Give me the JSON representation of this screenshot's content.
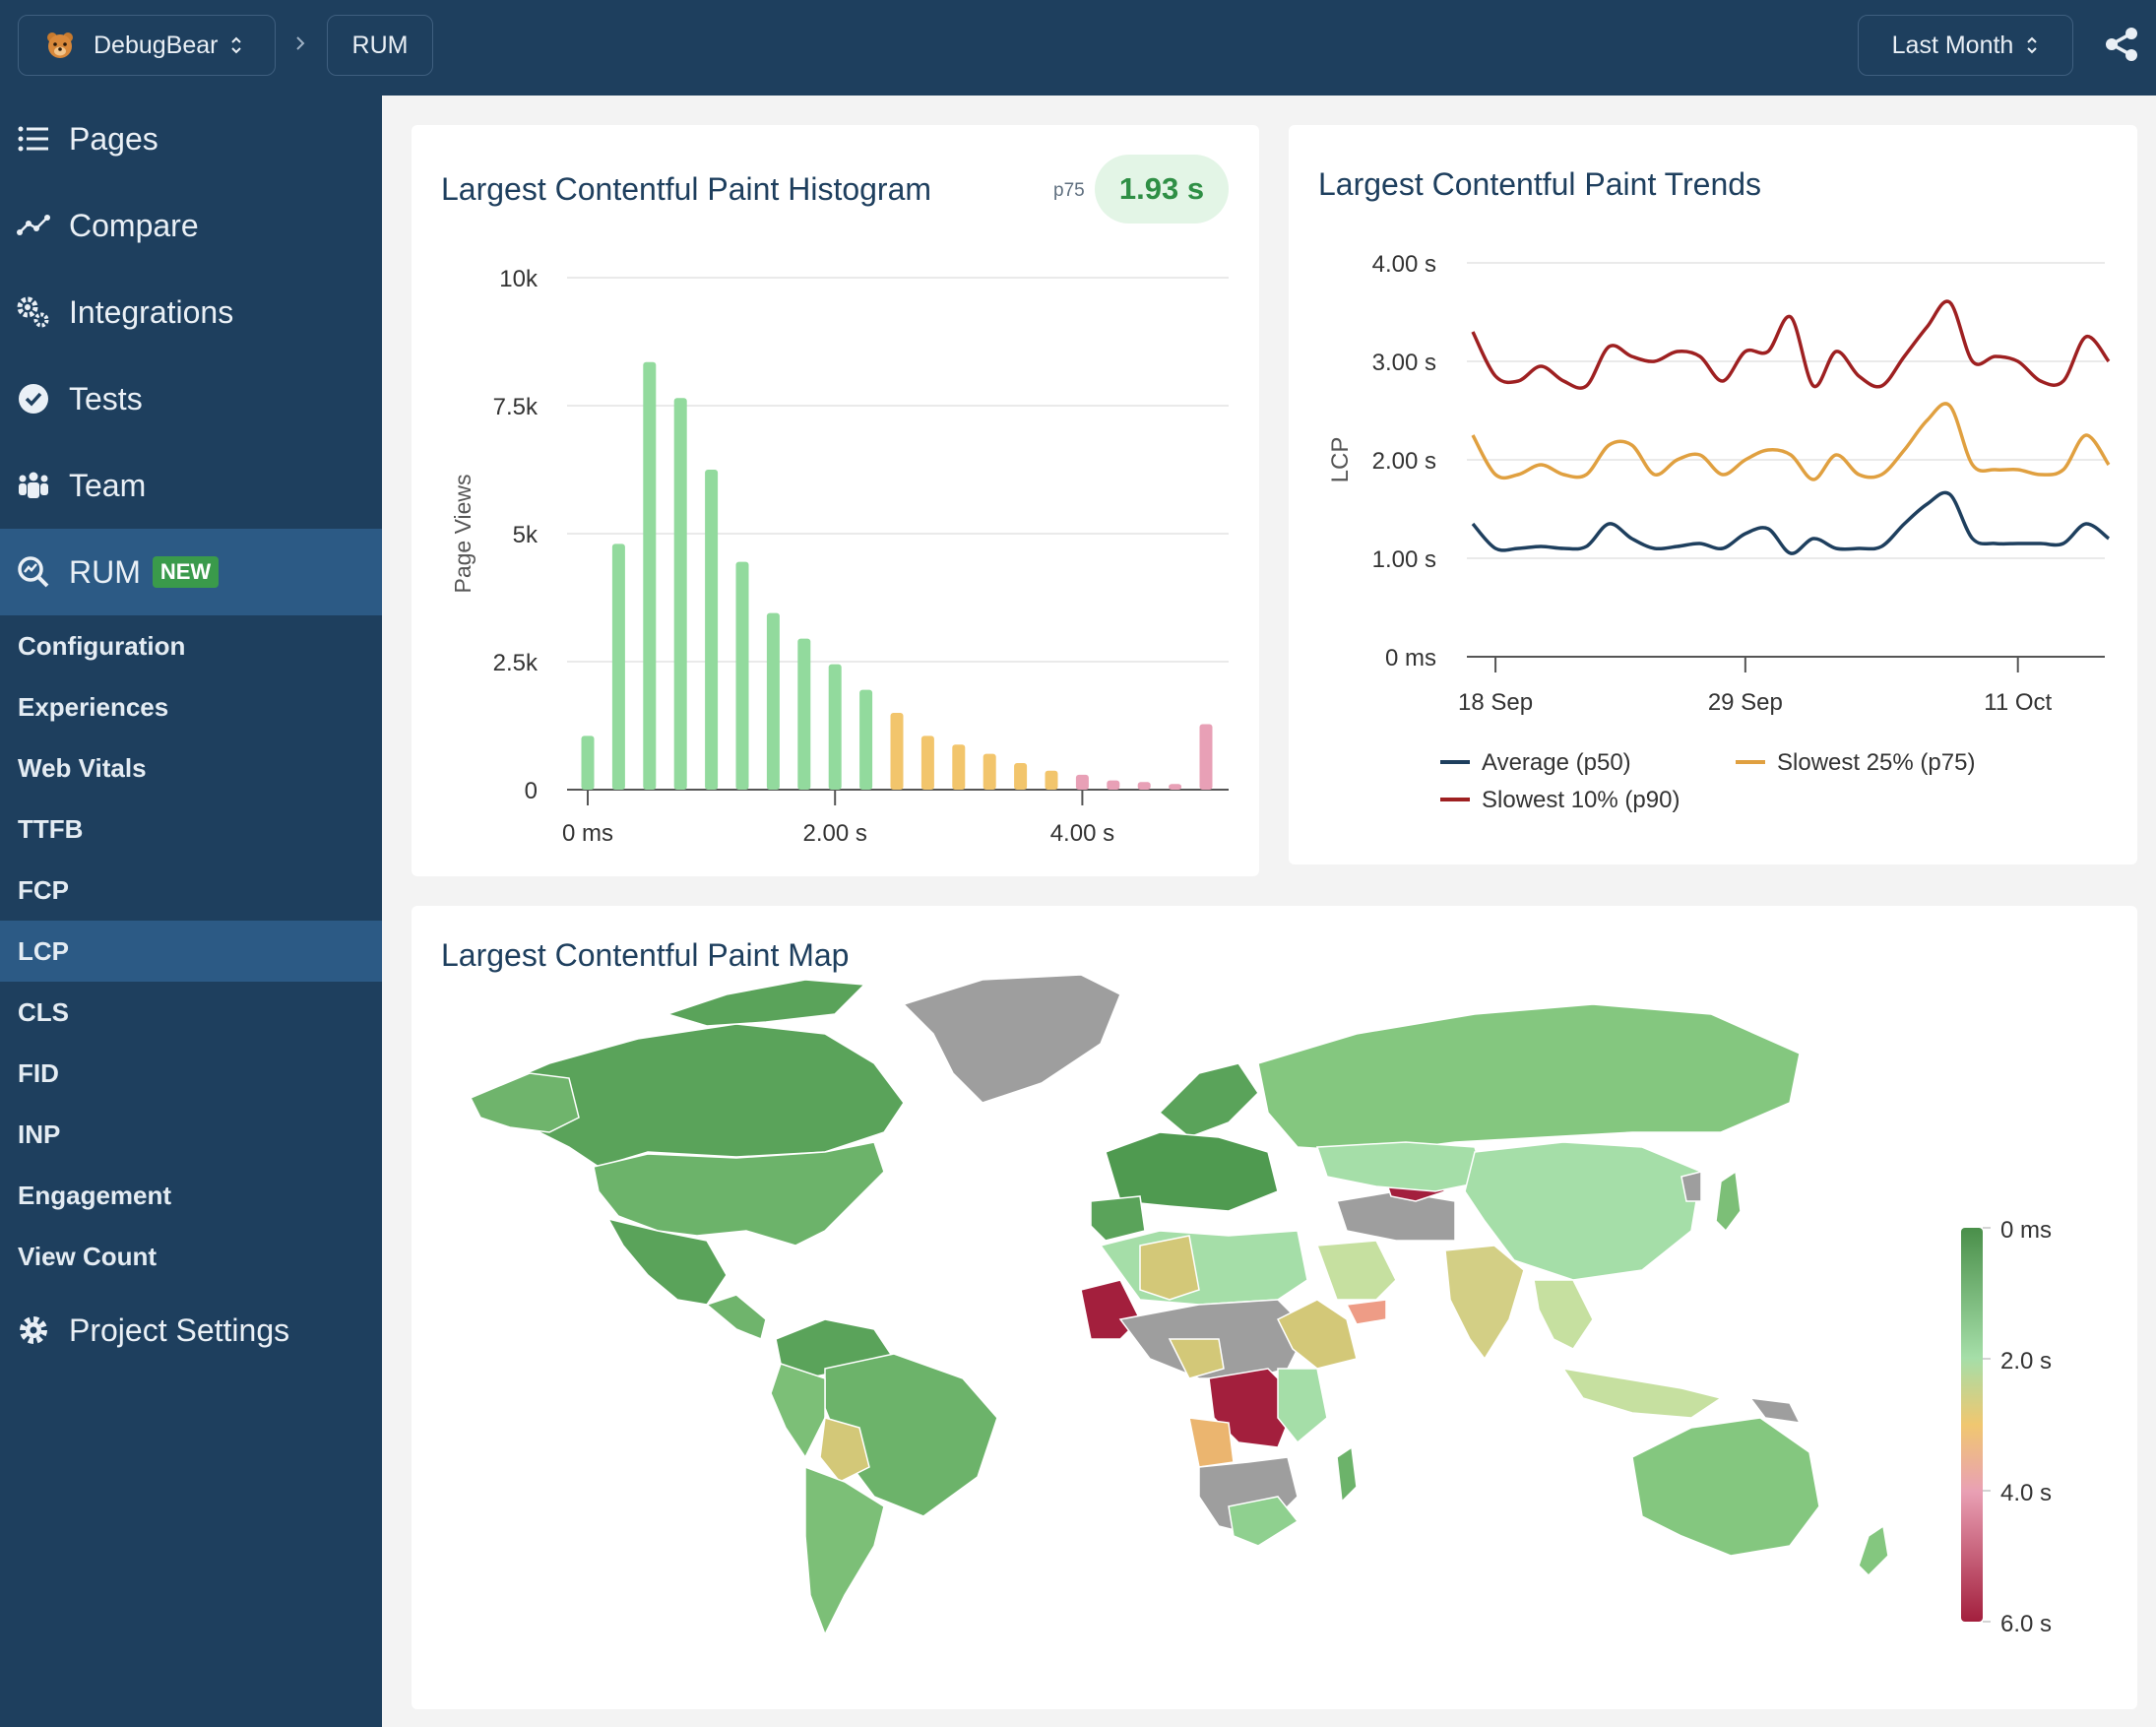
{
  "topbar": {
    "project": "DebugBear",
    "crumb": "RUM",
    "period": "Last Month"
  },
  "sidebar": {
    "items": [
      {
        "label": "Pages"
      },
      {
        "label": "Compare"
      },
      {
        "label": "Integrations"
      },
      {
        "label": "Tests"
      },
      {
        "label": "Team"
      },
      {
        "label": "RUM",
        "badge": "NEW"
      }
    ],
    "sub_items": [
      "Configuration",
      "Experiences",
      "Web Vitals",
      "TTFB",
      "FCP",
      "LCP",
      "CLS",
      "FID",
      "INP",
      "Engagement",
      "View Count"
    ],
    "active_sub": "LCP",
    "settings": "Project Settings"
  },
  "histogram": {
    "title": "Largest Contentful Paint Histogram",
    "p75_label": "p75",
    "p75_value": "1.93 s",
    "chart_data": {
      "type": "bar",
      "ylabel": "Page Views",
      "ylim": [
        0,
        10000
      ],
      "y_ticks": [
        "0",
        "2.5k",
        "5k",
        "7.5k",
        "10k"
      ],
      "x_ticks": [
        "0 ms",
        "2.00 s",
        "4.00 s"
      ],
      "bin_width_s": 0.25,
      "x": [
        0,
        0.25,
        0.5,
        0.75,
        1.0,
        1.25,
        1.5,
        1.75,
        2.0,
        2.25,
        2.5,
        2.75,
        3.0,
        3.25,
        3.5,
        3.75,
        4.0,
        4.25,
        4.5,
        4.75,
        5.0
      ],
      "values": [
        1050,
        4800,
        8350,
        7650,
        6250,
        4450,
        3450,
        2950,
        2450,
        1950,
        1500,
        1050,
        880,
        700,
        520,
        370,
        290,
        180,
        150,
        110,
        1280
      ],
      "colors": [
        "#92da9d",
        "#92da9d",
        "#92da9d",
        "#92da9d",
        "#92da9d",
        "#92da9d",
        "#92da9d",
        "#92da9d",
        "#92da9d",
        "#92da9d",
        "#f2c56c",
        "#f2c56c",
        "#f2c56c",
        "#f2c56c",
        "#f2c56c",
        "#f2c56c",
        "#e8a0b6",
        "#e8a0b6",
        "#e8a0b6",
        "#e8a0b6",
        "#e8a0b6"
      ]
    }
  },
  "trends": {
    "title": "Largest Contentful Paint Trends",
    "chart_data": {
      "type": "line",
      "ylabel": "LCP",
      "ylim": [
        0,
        4
      ],
      "y_ticks": [
        "0 ms",
        "1.00 s",
        "2.00 s",
        "3.00 s",
        "4.00 s"
      ],
      "x_ticks": [
        "18 Sep",
        "29 Sep",
        "11 Oct"
      ],
      "x": [
        "17 Sep",
        "18 Sep",
        "19 Sep",
        "20 Sep",
        "21 Sep",
        "22 Sep",
        "23 Sep",
        "24 Sep",
        "25 Sep",
        "26 Sep",
        "27 Sep",
        "28 Sep",
        "29 Sep",
        "30 Sep",
        "1 Oct",
        "2 Oct",
        "3 Oct",
        "4 Oct",
        "5 Oct",
        "6 Oct",
        "7 Oct",
        "8 Oct",
        "9 Oct",
        "10 Oct",
        "11 Oct",
        "12 Oct",
        "13 Oct",
        "14 Oct",
        "15 Oct"
      ],
      "series": [
        {
          "name": "Slowest 10% (p90)",
          "color": "#9e2021",
          "values": [
            3.3,
            2.85,
            2.8,
            2.95,
            2.8,
            2.75,
            3.15,
            3.05,
            3.0,
            3.1,
            3.05,
            2.8,
            3.1,
            3.1,
            3.45,
            2.75,
            3.1,
            2.85,
            2.75,
            3.05,
            3.35,
            3.6,
            3.0,
            3.05,
            3.0,
            2.8,
            2.8,
            3.25,
            3.0
          ]
        },
        {
          "name": "Slowest 25% (p75)",
          "color": "#e0a040",
          "values": [
            2.25,
            1.85,
            1.85,
            1.95,
            1.85,
            1.85,
            2.15,
            2.15,
            1.85,
            2.0,
            2.05,
            1.85,
            2.0,
            2.1,
            2.05,
            1.8,
            2.05,
            1.85,
            1.85,
            2.1,
            2.4,
            2.55,
            1.95,
            1.9,
            1.9,
            1.85,
            1.9,
            2.25,
            1.95
          ]
        },
        {
          "name": "Average (p50)",
          "color": "#1e3f5e",
          "values": [
            1.35,
            1.1,
            1.1,
            1.12,
            1.1,
            1.12,
            1.35,
            1.2,
            1.1,
            1.12,
            1.15,
            1.1,
            1.25,
            1.3,
            1.05,
            1.2,
            1.1,
            1.1,
            1.12,
            1.35,
            1.55,
            1.65,
            1.2,
            1.15,
            1.15,
            1.15,
            1.15,
            1.35,
            1.2
          ]
        }
      ],
      "legend": [
        "Average (p50)",
        "Slowest 25% (p75)",
        "Slowest 10% (p90)"
      ]
    }
  },
  "map": {
    "title": "Largest Contentful Paint Map",
    "scale_labels": [
      "0 ms",
      "2.0 s",
      "4.0 s",
      "6.0 s"
    ]
  }
}
